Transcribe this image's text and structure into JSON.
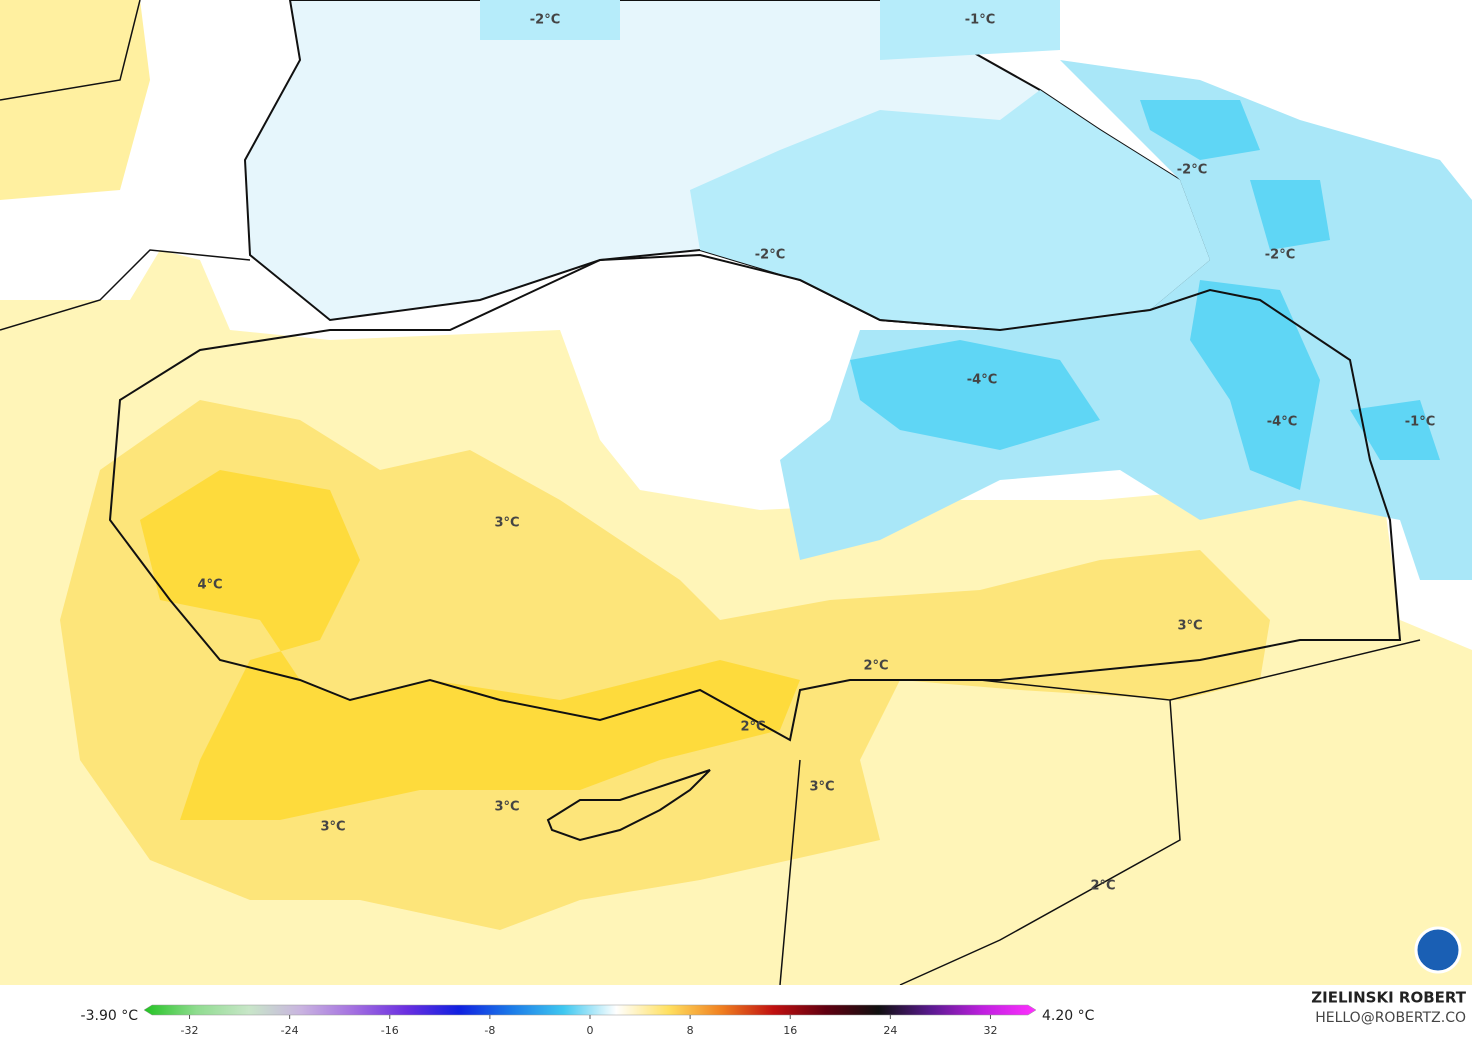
{
  "map": {
    "contour_labels": [
      "-2°C",
      "-1°C",
      "-2°C",
      "-2°C",
      "-2°C",
      "-4°C",
      "-4°C",
      "-1°C",
      "3°C",
      "4°C",
      "3°C",
      "2°C",
      "2°C",
      "3°C",
      "3°C",
      "3°C",
      "2°C"
    ]
  },
  "colorbar": {
    "min_label": "-3.90 °C",
    "max_label": "4.20 °C",
    "lim": [
      -35,
      35
    ],
    "ticks": [
      -32,
      -24,
      -16,
      -8,
      0,
      8,
      16,
      24,
      32
    ],
    "colors": [
      "#22c322",
      "#8fdc8f",
      "#c8e6c8",
      "#c9b3e0",
      "#a36fe0",
      "#6a2fe0",
      "#1020e0",
      "#1b7ae8",
      "#3fc8f0",
      "#ffffff",
      "#ffe060",
      "#f08020",
      "#c01010",
      "#600010",
      "#101010",
      "#5a1a90",
      "#c020e0",
      "#ff30ff"
    ]
  },
  "footer": {
    "author": "ZIELINSKI ROBERT",
    "email": "HELLO@ROBERTZ.CO"
  }
}
